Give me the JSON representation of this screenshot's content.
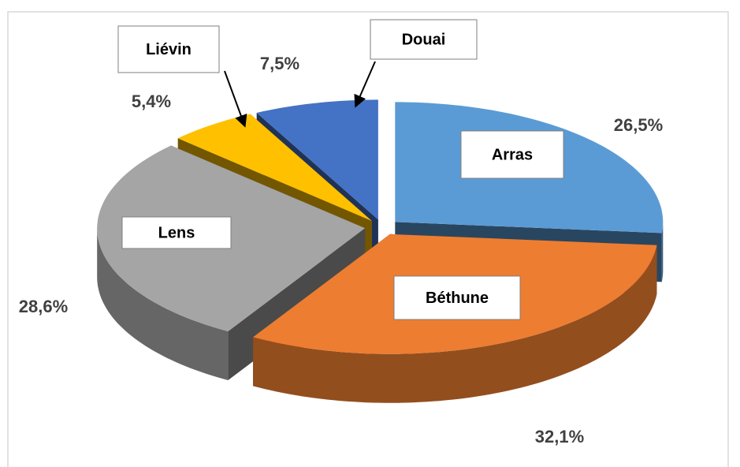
{
  "chart_data": {
    "type": "pie3d",
    "categories": [
      "Arras",
      "Béthune",
      "Lens",
      "Liévin",
      "Douai"
    ],
    "values": [
      26.5,
      32.1,
      28.6,
      5.4,
      7.5
    ],
    "value_labels": [
      "26,5%",
      "32,1%",
      "28,6%",
      "5,4%",
      "7,5%"
    ],
    "colors": [
      "#5b9bd5",
      "#ed7d31",
      "#a5a5a5",
      "#ffc000",
      "#4472c4"
    ]
  }
}
